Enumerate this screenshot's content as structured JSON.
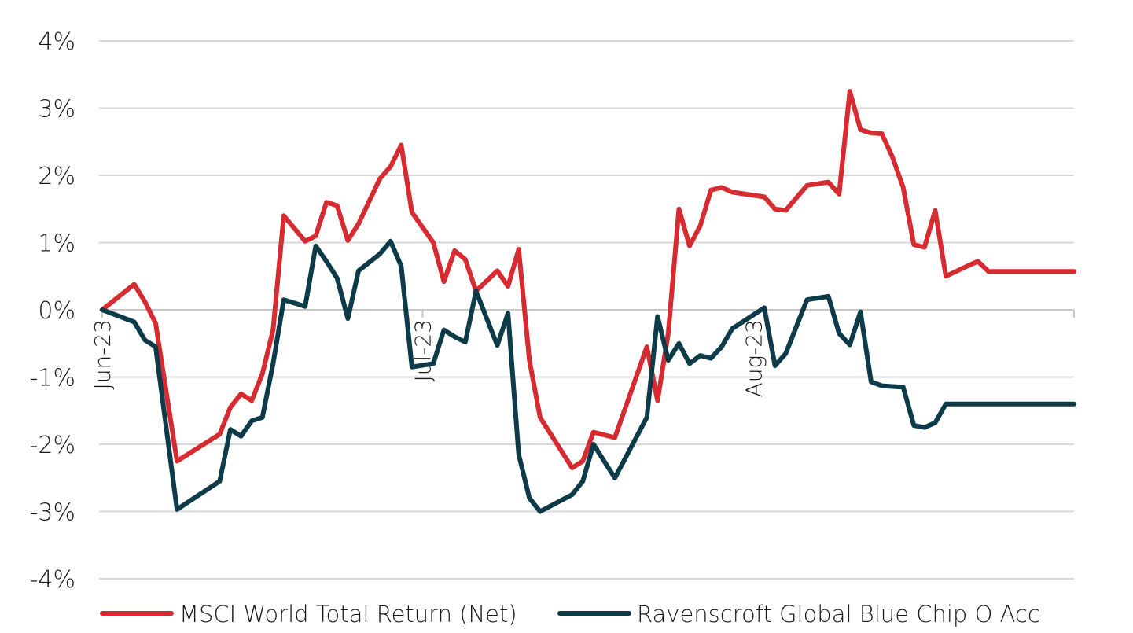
{
  "chart_data": {
    "type": "line",
    "title": "",
    "xlabel": "",
    "ylabel": "",
    "y_ticks": [
      "4%",
      "3%",
      "2%",
      "1%",
      "0%",
      "-1%",
      "-2%",
      "-3%",
      "-4%"
    ],
    "ylim": [
      -4,
      4
    ],
    "x_ticks": [
      {
        "label": "Jun-23",
        "x": 0
      },
      {
        "label": "Jul-23",
        "x": 30
      },
      {
        "label": "Aug-23",
        "x": 61
      }
    ],
    "xlim": [
      0,
      91
    ],
    "grid": "horizontal",
    "legend_position": "bottom",
    "series": [
      {
        "name": "MSCI World Total Return (Net)",
        "color": "#d62b31",
        "x": [
          0,
          3,
          4,
          5,
          7,
          11,
          12,
          13,
          14,
          15,
          16,
          17,
          19,
          20,
          21,
          22,
          23,
          24,
          26,
          27,
          28,
          29,
          31,
          32,
          33,
          34,
          35,
          37,
          38,
          39,
          40,
          41,
          44,
          45,
          46,
          48,
          51,
          52,
          53,
          54,
          55,
          56,
          57,
          58,
          59,
          62,
          63,
          64,
          66,
          68,
          69,
          70,
          71,
          72,
          73,
          74,
          75,
          76,
          77,
          78,
          79,
          81,
          82,
          83,
          84,
          85,
          87,
          88,
          89,
          90,
          91
        ],
        "y": [
          0.0,
          0.38,
          0.12,
          -0.2,
          -2.25,
          -1.85,
          -1.45,
          -1.25,
          -1.35,
          -0.95,
          -0.3,
          1.4,
          1.02,
          1.1,
          1.6,
          1.55,
          1.03,
          1.28,
          1.95,
          2.13,
          2.45,
          1.45,
          1.0,
          0.42,
          0.88,
          0.75,
          0.28,
          0.58,
          0.35,
          0.9,
          -0.75,
          -1.6,
          -2.35,
          -2.25,
          -1.82,
          -1.9,
          -0.55,
          -1.35,
          -0.35,
          1.5,
          0.95,
          1.25,
          1.78,
          1.82,
          1.75,
          1.68,
          1.5,
          1.48,
          1.85,
          1.9,
          1.72,
          3.25,
          2.68,
          2.63,
          2.62,
          2.27,
          1.82,
          0.97,
          0.93,
          1.48,
          0.5,
          0.65,
          0.72,
          0.57,
          0.57,
          0.57,
          0.57,
          0.57,
          0.57,
          0.57,
          0.57
        ]
      },
      {
        "name": "Ravenscroft Global Blue Chip O Acc",
        "color": "#0d3b4a",
        "x": [
          0,
          3,
          4,
          5,
          7,
          11,
          12,
          13,
          14,
          15,
          16,
          17,
          19,
          20,
          21,
          22,
          23,
          24,
          26,
          27,
          28,
          29,
          31,
          32,
          33,
          34,
          35,
          37,
          38,
          39,
          40,
          41,
          44,
          45,
          46,
          48,
          51,
          52,
          53,
          54,
          55,
          56,
          57,
          58,
          59,
          62,
          63,
          64,
          66,
          68,
          69,
          70,
          71,
          72,
          73,
          74,
          75,
          76,
          77,
          78,
          79,
          81,
          82,
          83,
          84,
          85,
          87,
          88,
          89,
          90,
          91
        ],
        "y": [
          0.0,
          -0.18,
          -0.45,
          -0.55,
          -2.97,
          -2.55,
          -1.78,
          -1.88,
          -1.65,
          -1.6,
          -0.8,
          0.15,
          0.05,
          0.95,
          0.72,
          0.47,
          -0.13,
          0.58,
          0.83,
          1.02,
          0.65,
          -0.85,
          -0.8,
          -0.3,
          -0.4,
          -0.48,
          0.28,
          -0.53,
          -0.05,
          -2.15,
          -2.8,
          -3.0,
          -2.75,
          -2.55,
          -2.0,
          -2.5,
          -1.6,
          -0.1,
          -0.75,
          -0.5,
          -0.8,
          -0.68,
          -0.72,
          -0.55,
          -0.28,
          0.03,
          -0.83,
          -0.65,
          0.15,
          0.2,
          -0.35,
          -0.52,
          -0.03,
          -1.07,
          -1.13,
          -1.14,
          -1.15,
          -1.72,
          -1.75,
          -1.68,
          -1.4,
          -1.4,
          -1.4,
          -1.4,
          -1.4,
          -1.4,
          -1.4,
          -1.4,
          -1.4,
          -1.4,
          -1.4
        ]
      }
    ]
  }
}
